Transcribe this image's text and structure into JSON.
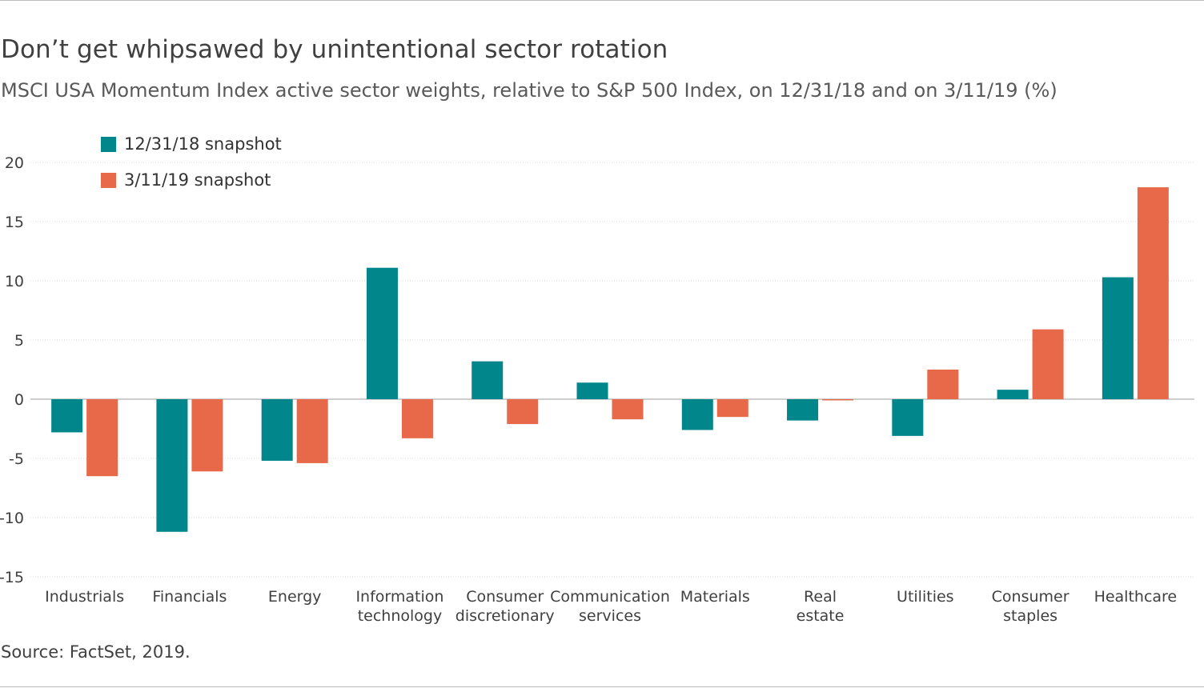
{
  "title": "Don’t get whipsawed by unintentional sector rotation",
  "subtitle": "MSCI USA Momentum Index active sector weights, relative to S&P 500 Index, on 12/31/18 and on 3/11/19 (%)",
  "source": "Source: FactSet, 2019.",
  "legend": [
    {
      "label": "12/31/18 snapshot",
      "color": "#00868b"
    },
    {
      "label": "3/11/19 snapshot",
      "color": "#e8694a"
    }
  ],
  "chart_data": {
    "type": "bar",
    "title": "Don’t get whipsawed by unintentional sector rotation",
    "xlabel": "",
    "ylabel": "",
    "ylim": [
      -15,
      20
    ],
    "yticks": [
      20,
      15,
      10,
      5,
      0,
      -5,
      -10,
      -15
    ],
    "grid": true,
    "legend_position": "top-left",
    "categories": [
      [
        "Industrials"
      ],
      [
        "Financials"
      ],
      [
        "Energy"
      ],
      [
        "Information",
        "technology"
      ],
      [
        "Consumer",
        "discretionary"
      ],
      [
        "Communication",
        "services"
      ],
      [
        "Materials"
      ],
      [
        "Real",
        "estate"
      ],
      [
        "Utilities"
      ],
      [
        "Consumer",
        "staples"
      ],
      [
        "Healthcare"
      ]
    ],
    "series": [
      {
        "name": "12/31/18 snapshot",
        "color": "#00868b",
        "values": [
          -2.8,
          -11.2,
          -5.2,
          11.1,
          3.2,
          1.4,
          -2.6,
          -1.8,
          -3.1,
          0.8,
          10.3
        ]
      },
      {
        "name": "3/11/19 snapshot",
        "color": "#e8694a",
        "values": [
          -6.5,
          -6.1,
          -5.4,
          -3.3,
          -2.1,
          -1.7,
          -1.5,
          -0.1,
          2.5,
          5.9,
          17.9
        ]
      }
    ]
  }
}
